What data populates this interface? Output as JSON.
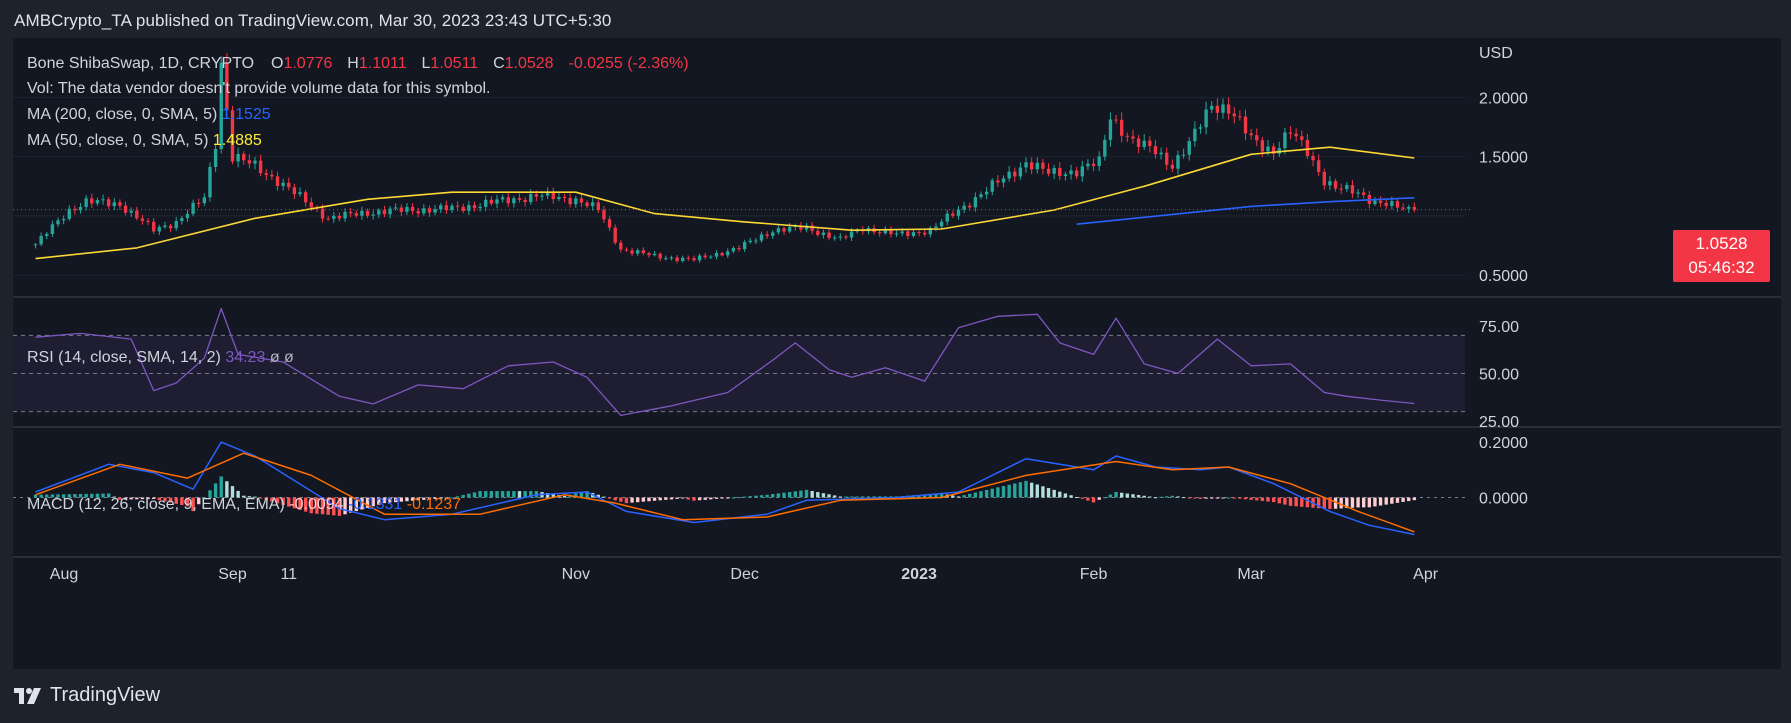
{
  "header": {
    "published": "AMBCrypto_TA published on TradingView.com, Mar 30, 2023 23:43 UTC+5:30"
  },
  "legend": {
    "symbol": "Bone ShibaSwap, 1D, CRYPTO",
    "o_label": "O",
    "o": "1.0776",
    "h_label": "H",
    "h": "1.1011",
    "l_label": "L",
    "l": "1.0511",
    "c_label": "C",
    "c": "1.0528",
    "change": "-0.0255 (-2.36%)",
    "vol": "Vol: The data vendor doesn't provide volume data for this symbol.",
    "ma200_label": "MA (200, close, 0, SMA, 5)",
    "ma200_value": "1.1525",
    "ma50_label": "MA (50, close, 0, SMA, 5)",
    "ma50_value": "1.4885",
    "rsi_label": "RSI (14, close, SMA, 14, 2)",
    "rsi_value": "34.23",
    "rsi_extra": "ø  ø",
    "macd_label": "MACD (12, 26, close, 9, EMA, EMA)",
    "macd_hist": "-0.0094",
    "macd_line": "-0.1331",
    "macd_signal": "-0.1237"
  },
  "price_badge": {
    "price": "1.0528",
    "countdown": "05:46:32"
  },
  "footer": {
    "brand": "TradingView"
  },
  "colors": {
    "bg": "#131722",
    "up": "#26a69a",
    "down": "#f23645",
    "ma50": "#fdd835",
    "ma200": "#2962ff",
    "rsi": "#7e57c2",
    "macd": "#2962ff",
    "signal": "#ff6d00"
  },
  "chart_data": {
    "type": "candlestick",
    "currency": "USD",
    "price_axis": {
      "ticks": [
        0.5,
        1.0,
        1.5,
        2.0
      ],
      "tick_labels": [
        "0.5000",
        "",
        "1.5000",
        "2.0000"
      ],
      "range": [
        0.35,
        2.45
      ]
    },
    "rsi_axis": {
      "ticks": [
        25,
        50,
        75
      ],
      "tick_labels": [
        "25.00",
        "50.00",
        "75.00"
      ],
      "range": [
        24,
        88
      ],
      "bands": [
        30,
        70
      ]
    },
    "macd_axis": {
      "ticks": [
        0.0,
        0.2
      ],
      "tick_labels": [
        "0.0000",
        "0.2000"
      ],
      "range": [
        -0.2,
        0.24
      ]
    },
    "x_labels": [
      "Aug",
      "Sep",
      "11",
      "Nov",
      "Dec",
      "2023",
      "Feb",
      "Mar",
      "Apr"
    ],
    "close_keypoints": [
      [
        "2022-07-28",
        0.76
      ],
      [
        "2022-08-03",
        1.05
      ],
      [
        "2022-08-06",
        1.12
      ],
      [
        "2022-08-12",
        1.1
      ],
      [
        "2022-08-18",
        0.88
      ],
      [
        "2022-08-22",
        0.95
      ],
      [
        "2022-08-27",
        1.15
      ],
      [
        "2022-08-29",
        1.62
      ],
      [
        "2022-08-30",
        2.3
      ],
      [
        "2022-09-01",
        1.5
      ],
      [
        "2022-09-05",
        1.42
      ],
      [
        "2022-09-09",
        1.3
      ],
      [
        "2022-09-14",
        1.12
      ],
      [
        "2022-09-18",
        0.98
      ],
      [
        "2022-09-25",
        1.03
      ],
      [
        "2022-10-02",
        1.05
      ],
      [
        "2022-10-10",
        1.06
      ],
      [
        "2022-10-18",
        1.12
      ],
      [
        "2022-10-25",
        1.17
      ],
      [
        "2022-11-01",
        1.14
      ],
      [
        "2022-11-05",
        1.05
      ],
      [
        "2022-11-09",
        0.72
      ],
      [
        "2022-11-15",
        0.66
      ],
      [
        "2022-11-22",
        0.63
      ],
      [
        "2022-11-30",
        0.73
      ],
      [
        "2022-12-06",
        0.88
      ],
      [
        "2022-12-12",
        0.9
      ],
      [
        "2022-12-18",
        0.8
      ],
      [
        "2022-12-22",
        0.9
      ],
      [
        "2022-12-28",
        0.84
      ],
      [
        "2023-01-03",
        0.88
      ],
      [
        "2023-01-08",
        1.05
      ],
      [
        "2023-01-14",
        1.25
      ],
      [
        "2023-01-20",
        1.45
      ],
      [
        "2023-01-24",
        1.36
      ],
      [
        "2023-01-29",
        1.38
      ],
      [
        "2023-02-02",
        1.45
      ],
      [
        "2023-02-04",
        1.85
      ],
      [
        "2023-02-08",
        1.62
      ],
      [
        "2023-02-12",
        1.55
      ],
      [
        "2023-02-15",
        1.43
      ],
      [
        "2023-02-18",
        1.6
      ],
      [
        "2023-02-22",
        1.95
      ],
      [
        "2023-02-25",
        1.9
      ],
      [
        "2023-03-01",
        1.65
      ],
      [
        "2023-03-05",
        1.55
      ],
      [
        "2023-03-08",
        1.7
      ],
      [
        "2023-03-11",
        1.55
      ],
      [
        "2023-03-14",
        1.3
      ],
      [
        "2023-03-16",
        1.23
      ],
      [
        "2023-03-20",
        1.2
      ],
      [
        "2023-03-23",
        1.12
      ],
      [
        "2023-03-27",
        1.07
      ],
      [
        "2023-03-30",
        1.0528
      ]
    ],
    "ma50": [
      [
        "2022-07-28",
        0.64
      ],
      [
        "2022-08-15",
        0.73
      ],
      [
        "2022-09-05",
        0.98
      ],
      [
        "2022-09-25",
        1.14
      ],
      [
        "2022-10-10",
        1.2
      ],
      [
        "2022-11-01",
        1.2
      ],
      [
        "2022-11-15",
        1.02
      ],
      [
        "2022-12-01",
        0.95
      ],
      [
        "2022-12-20",
        0.88
      ],
      [
        "2023-01-05",
        0.89
      ],
      [
        "2023-01-25",
        1.05
      ],
      [
        "2023-02-10",
        1.25
      ],
      [
        "2023-03-01",
        1.52
      ],
      [
        "2023-03-15",
        1.58
      ],
      [
        "2023-03-30",
        1.4885
      ]
    ],
    "ma200": [
      [
        "2023-01-29",
        0.93
      ],
      [
        "2023-03-01",
        1.08
      ],
      [
        "2023-03-15",
        1.12
      ],
      [
        "2023-03-30",
        1.1525
      ]
    ],
    "rsi": [
      [
        "2022-07-28",
        69
      ],
      [
        "2022-08-05",
        71
      ],
      [
        "2022-08-14",
        68
      ],
      [
        "2022-08-18",
        41
      ],
      [
        "2022-08-22",
        45
      ],
      [
        "2022-08-27",
        58
      ],
      [
        "2022-08-30",
        84
      ],
      [
        "2022-09-02",
        60
      ],
      [
        "2022-09-10",
        56
      ],
      [
        "2022-09-20",
        38
      ],
      [
        "2022-09-26",
        34
      ],
      [
        "2022-10-04",
        44
      ],
      [
        "2022-10-12",
        42
      ],
      [
        "2022-10-20",
        54
      ],
      [
        "2022-10-28",
        56
      ],
      [
        "2022-11-03",
        48
      ],
      [
        "2022-11-09",
        28
      ],
      [
        "2022-11-18",
        33
      ],
      [
        "2022-11-28",
        40
      ],
      [
        "2022-12-06",
        57
      ],
      [
        "2022-12-10",
        66
      ],
      [
        "2022-12-16",
        52
      ],
      [
        "2022-12-20",
        48
      ],
      [
        "2022-12-26",
        53
      ],
      [
        "2023-01-02",
        46
      ],
      [
        "2023-01-08",
        74
      ],
      [
        "2023-01-15",
        80
      ],
      [
        "2023-01-22",
        81
      ],
      [
        "2023-01-26",
        66
      ],
      [
        "2023-02-01",
        60
      ],
      [
        "2023-02-05",
        79
      ],
      [
        "2023-02-10",
        55
      ],
      [
        "2023-02-16",
        50
      ],
      [
        "2023-02-23",
        68
      ],
      [
        "2023-03-01",
        54
      ],
      [
        "2023-03-08",
        55
      ],
      [
        "2023-03-14",
        40
      ],
      [
        "2023-03-18",
        38
      ],
      [
        "2023-03-24",
        36
      ],
      [
        "2023-03-30",
        34.23
      ]
    ],
    "macd": [
      [
        "2022-07-28",
        0.02
      ],
      [
        "2022-08-10",
        0.12
      ],
      [
        "2022-08-18",
        0.09
      ],
      [
        "2022-08-25",
        0.03
      ],
      [
        "2022-08-30",
        0.2
      ],
      [
        "2022-09-05",
        0.15
      ],
      [
        "2022-09-20",
        -0.04
      ],
      [
        "2022-09-28",
        -0.08
      ],
      [
        "2022-10-10",
        -0.06
      ],
      [
        "2022-10-25",
        0.01
      ],
      [
        "2022-11-03",
        0.02
      ],
      [
        "2022-11-10",
        -0.05
      ],
      [
        "2022-11-22",
        -0.09
      ],
      [
        "2022-12-05",
        -0.06
      ],
      [
        "2022-12-12",
        -0.01
      ],
      [
        "2022-12-28",
        0.0
      ],
      [
        "2023-01-08",
        0.02
      ],
      [
        "2023-01-20",
        0.14
      ],
      [
        "2023-02-01",
        0.1
      ],
      [
        "2023-02-05",
        0.15
      ],
      [
        "2023-02-12",
        0.11
      ],
      [
        "2023-02-20",
        0.1
      ],
      [
        "2023-02-25",
        0.11
      ],
      [
        "2023-03-05",
        0.05
      ],
      [
        "2023-03-15",
        -0.05
      ],
      [
        "2023-03-22",
        -0.1
      ],
      [
        "2023-03-30",
        -0.1331
      ]
    ],
    "signal": [
      [
        "2022-07-28",
        0.01
      ],
      [
        "2022-08-12",
        0.12
      ],
      [
        "2022-08-24",
        0.07
      ],
      [
        "2022-09-03",
        0.16
      ],
      [
        "2022-09-15",
        0.08
      ],
      [
        "2022-09-28",
        -0.06
      ],
      [
        "2022-10-15",
        -0.06
      ],
      [
        "2022-10-30",
        0.01
      ],
      [
        "2022-11-08",
        -0.02
      ],
      [
        "2022-11-20",
        -0.08
      ],
      [
        "2022-12-05",
        -0.07
      ],
      [
        "2022-12-18",
        -0.01
      ],
      [
        "2023-01-05",
        0.0
      ],
      [
        "2023-01-20",
        0.08
      ],
      [
        "2023-02-05",
        0.13
      ],
      [
        "2023-02-15",
        0.1
      ],
      [
        "2023-02-25",
        0.11
      ],
      [
        "2023-03-08",
        0.05
      ],
      [
        "2023-03-20",
        -0.05
      ],
      [
        "2023-03-30",
        -0.1237
      ]
    ]
  }
}
